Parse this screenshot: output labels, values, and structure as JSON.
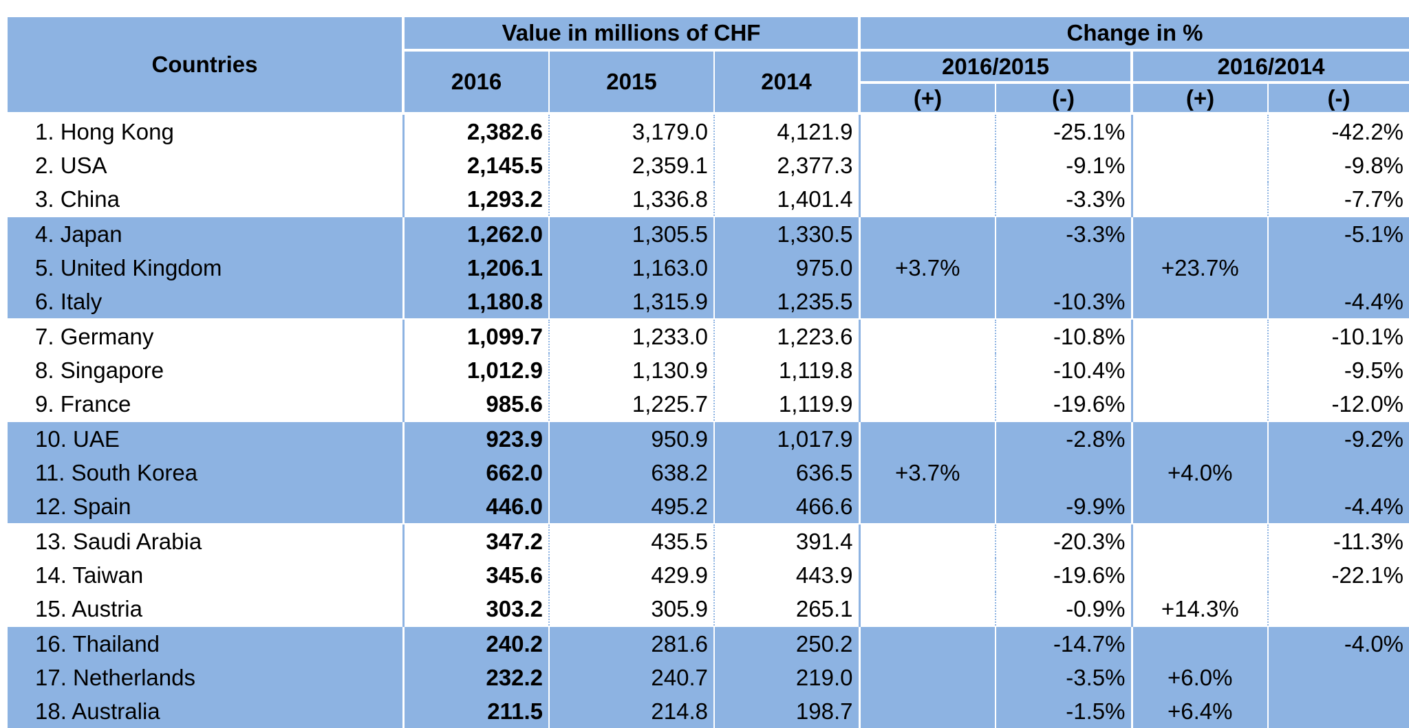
{
  "header": {
    "countries": "Countries",
    "value_group": "Value in millions of CHF",
    "change_group": "Change in %",
    "years": [
      "2016",
      "2015",
      "2014"
    ],
    "periods": [
      "2016/2015",
      "2016/2014"
    ],
    "plus": "(+)",
    "minus": "(-)"
  },
  "rows": [
    {
      "rank": "1.",
      "country": "Hong Kong",
      "v2016": "2,382.6",
      "v2015": "3,179.0",
      "v2014": "4,121.9",
      "p1": "",
      "m1": "-25.1%",
      "p2": "",
      "m2": "-42.2%"
    },
    {
      "rank": "2.",
      "country": "USA",
      "v2016": "2,145.5",
      "v2015": "2,359.1",
      "v2014": "2,377.3",
      "p1": "",
      "m1": "-9.1%",
      "p2": "",
      "m2": "-9.8%"
    },
    {
      "rank": "3.",
      "country": "China",
      "v2016": "1,293.2",
      "v2015": "1,336.8",
      "v2014": "1,401.4",
      "p1": "",
      "m1": "-3.3%",
      "p2": "",
      "m2": "-7.7%"
    },
    {
      "rank": "4.",
      "country": "Japan",
      "v2016": "1,262.0",
      "v2015": "1,305.5",
      "v2014": "1,330.5",
      "p1": "",
      "m1": "-3.3%",
      "p2": "",
      "m2": "-5.1%"
    },
    {
      "rank": "5.",
      "country": "United Kingdom",
      "v2016": "1,206.1",
      "v2015": "1,163.0",
      "v2014": "975.0",
      "p1": "+3.7%",
      "m1": "",
      "p2": "+23.7%",
      "m2": ""
    },
    {
      "rank": "6.",
      "country": "Italy",
      "v2016": "1,180.8",
      "v2015": "1,315.9",
      "v2014": "1,235.5",
      "p1": "",
      "m1": "-10.3%",
      "p2": "",
      "m2": "-4.4%"
    },
    {
      "rank": "7.",
      "country": "Germany",
      "v2016": "1,099.7",
      "v2015": "1,233.0",
      "v2014": "1,223.6",
      "p1": "",
      "m1": "-10.8%",
      "p2": "",
      "m2": "-10.1%"
    },
    {
      "rank": "8.",
      "country": "Singapore",
      "v2016": "1,012.9",
      "v2015": "1,130.9",
      "v2014": "1,119.8",
      "p1": "",
      "m1": "-10.4%",
      "p2": "",
      "m2": "-9.5%"
    },
    {
      "rank": "9.",
      "country": "France",
      "v2016": "985.6",
      "v2015": "1,225.7",
      "v2014": "1,119.9",
      "p1": "",
      "m1": "-19.6%",
      "p2": "",
      "m2": "-12.0%"
    },
    {
      "rank": "10.",
      "country": "UAE",
      "v2016": "923.9",
      "v2015": "950.9",
      "v2014": "1,017.9",
      "p1": "",
      "m1": "-2.8%",
      "p2": "",
      "m2": "-9.2%"
    },
    {
      "rank": "11.",
      "country": "South Korea",
      "v2016": "662.0",
      "v2015": "638.2",
      "v2014": "636.5",
      "p1": "+3.7%",
      "m1": "",
      "p2": "+4.0%",
      "m2": ""
    },
    {
      "rank": "12.",
      "country": "Spain",
      "v2016": "446.0",
      "v2015": "495.2",
      "v2014": "466.6",
      "p1": "",
      "m1": "-9.9%",
      "p2": "",
      "m2": "-4.4%"
    },
    {
      "rank": "13.",
      "country": "Saudi Arabia",
      "v2016": "347.2",
      "v2015": "435.5",
      "v2014": "391.4",
      "p1": "",
      "m1": "-20.3%",
      "p2": "",
      "m2": "-11.3%"
    },
    {
      "rank": "14.",
      "country": "Taiwan",
      "v2016": "345.6",
      "v2015": "429.9",
      "v2014": "443.9",
      "p1": "",
      "m1": "-19.6%",
      "p2": "",
      "m2": "-22.1%"
    },
    {
      "rank": "15.",
      "country": "Austria",
      "v2016": "303.2",
      "v2015": "305.9",
      "v2014": "265.1",
      "p1": "",
      "m1": "-0.9%",
      "p2": "+14.3%",
      "m2": ""
    },
    {
      "rank": "16.",
      "country": "Thailand",
      "v2016": "240.2",
      "v2015": "281.6",
      "v2014": "250.2",
      "p1": "",
      "m1": "-14.7%",
      "p2": "",
      "m2": "-4.0%"
    },
    {
      "rank": "17.",
      "country": "Netherlands",
      "v2016": "232.2",
      "v2015": "240.7",
      "v2014": "219.0",
      "p1": "",
      "m1": "-3.5%",
      "p2": "+6.0%",
      "m2": ""
    },
    {
      "rank": "18.",
      "country": "Australia",
      "v2016": "211.5",
      "v2015": "214.8",
      "v2014": "198.7",
      "p1": "",
      "m1": "-1.5%",
      "p2": "+6.4%",
      "m2": ""
    }
  ],
  "colors": {
    "band": "#8db3e2",
    "background": "#ffffff",
    "text": "#000000"
  }
}
